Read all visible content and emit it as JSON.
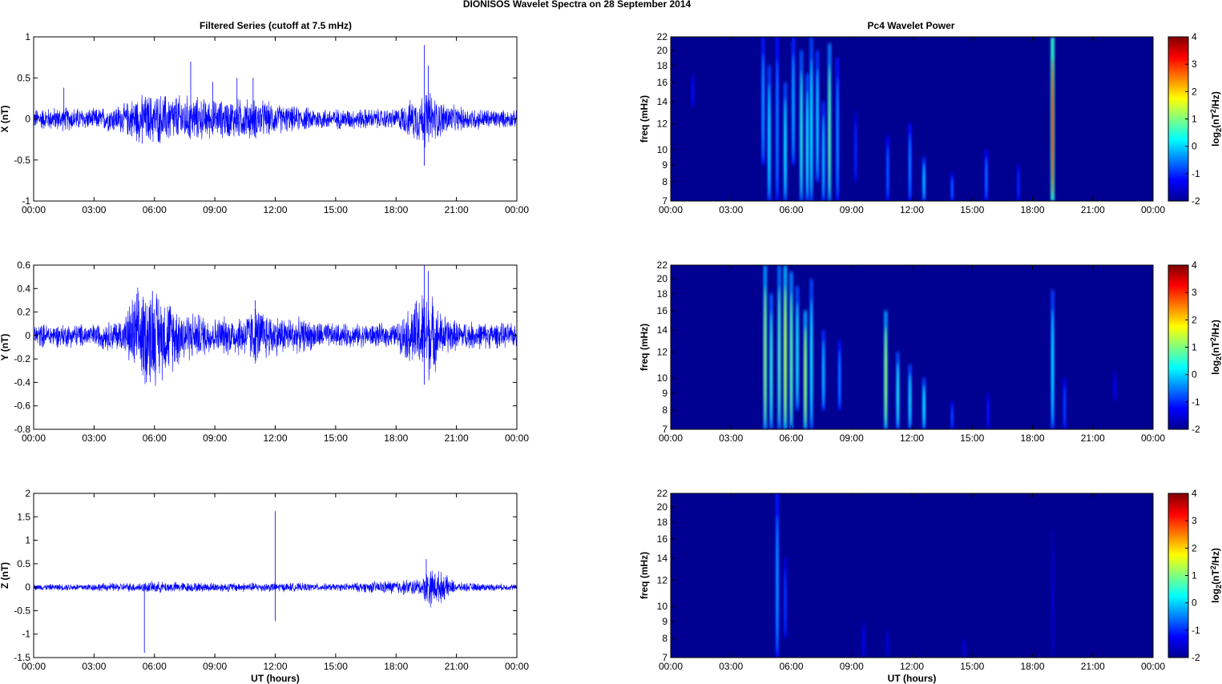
{
  "figure": {
    "title": "DIONISOS Wavelet Spectra on 28 September 2014",
    "colors": {
      "trace": "#0000ff",
      "background": "#ffffff",
      "axis": "#000000"
    }
  },
  "chart_data": [
    {
      "type": "line",
      "title": "Filtered Series (cutoff at 7.5 mHz)",
      "xlabel": "",
      "ylabel": "X (nT)",
      "ylim": [
        -1,
        1
      ],
      "yticks": [
        "-1",
        "-0.5",
        "0",
        "0.5",
        "1"
      ],
      "xlim_hours": [
        0,
        24
      ],
      "xticks": [
        "00:00",
        "03:00",
        "06:00",
        "09:00",
        "12:00",
        "15:00",
        "18:00",
        "21:00",
        "00:00"
      ],
      "envelope": [
        [
          0,
          0.1
        ],
        [
          1.5,
          0.12
        ],
        [
          3,
          0.1
        ],
        [
          4.5,
          0.15
        ],
        [
          5,
          0.22
        ],
        [
          6,
          0.25
        ],
        [
          7,
          0.24
        ],
        [
          8,
          0.22
        ],
        [
          9,
          0.18
        ],
        [
          10,
          0.2
        ],
        [
          11,
          0.2
        ],
        [
          12,
          0.15
        ],
        [
          13,
          0.12
        ],
        [
          15,
          0.1
        ],
        [
          18,
          0.1
        ],
        [
          19.3,
          0.25
        ],
        [
          19.6,
          0.3
        ],
        [
          20,
          0.2
        ],
        [
          21,
          0.12
        ],
        [
          24,
          0.08
        ]
      ],
      "spikes": [
        [
          7.8,
          0.7
        ],
        [
          19.4,
          0.9
        ],
        [
          19.4,
          -0.57
        ],
        [
          10.9,
          0.5
        ],
        [
          8.9,
          0.45
        ],
        [
          10.1,
          0.5
        ],
        [
          1.5,
          0.38
        ],
        [
          5.4,
          -0.3
        ],
        [
          19.6,
          0.65
        ]
      ]
    },
    {
      "type": "line",
      "title": "",
      "xlabel": "",
      "ylabel": "Y (nT)",
      "ylim": [
        -0.8,
        0.6
      ],
      "yticks": [
        "-0.8",
        "-0.6",
        "-0.4",
        "-0.2",
        "0",
        "0.2",
        "0.4",
        "0.6"
      ],
      "xlim_hours": [
        0,
        24
      ],
      "xticks": [
        "00:00",
        "03:00",
        "06:00",
        "09:00",
        "12:00",
        "15:00",
        "18:00",
        "21:00",
        "00:00"
      ],
      "envelope": [
        [
          0,
          0.08
        ],
        [
          3,
          0.08
        ],
        [
          4.5,
          0.12
        ],
        [
          5,
          0.3
        ],
        [
          5.8,
          0.35
        ],
        [
          6.5,
          0.28
        ],
        [
          7.5,
          0.18
        ],
        [
          9,
          0.12
        ],
        [
          10.5,
          0.15
        ],
        [
          11,
          0.2
        ],
        [
          12,
          0.14
        ],
        [
          15,
          0.08
        ],
        [
          18,
          0.08
        ],
        [
          19.3,
          0.3
        ],
        [
          19.6,
          0.32
        ],
        [
          20.2,
          0.16
        ],
        [
          21,
          0.1
        ],
        [
          24,
          0.08
        ]
      ],
      "spikes": [
        [
          19.4,
          0.6
        ],
        [
          19.4,
          -0.42
        ],
        [
          19.6,
          0.55
        ],
        [
          5.6,
          -0.4
        ],
        [
          5.9,
          0.38
        ],
        [
          11,
          0.3
        ]
      ]
    },
    {
      "type": "line",
      "title": "",
      "xlabel": "UT (hours)",
      "ylabel": "Z (nT)",
      "ylim": [
        -1.5,
        2
      ],
      "yticks": [
        "-1.5",
        "-1",
        "-0.5",
        "0",
        "0.5",
        "1",
        "1.5",
        "2"
      ],
      "xlim_hours": [
        0,
        24
      ],
      "xticks": [
        "00:00",
        "03:00",
        "06:00",
        "09:00",
        "12:00",
        "15:00",
        "18:00",
        "21:00",
        "00:00"
      ],
      "envelope": [
        [
          0,
          0.05
        ],
        [
          2,
          0.06
        ],
        [
          5,
          0.08
        ],
        [
          6,
          0.1
        ],
        [
          8,
          0.08
        ],
        [
          12,
          0.08
        ],
        [
          15,
          0.06
        ],
        [
          19.3,
          0.15
        ],
        [
          19.6,
          0.35
        ],
        [
          20.3,
          0.25
        ],
        [
          21,
          0.08
        ],
        [
          24,
          0.05
        ]
      ],
      "spikes": [
        [
          5.5,
          -1.4
        ],
        [
          12.0,
          1.62
        ],
        [
          12.0,
          -0.72
        ],
        [
          19.5,
          0.6
        ],
        [
          19.5,
          -0.25
        ]
      ]
    },
    {
      "type": "heatmap",
      "title": "Pc4 Wavelet Power",
      "xlabel": "",
      "ylabel": "freq (mHz)",
      "yscale": "log",
      "ylim": [
        7,
        22
      ],
      "yticks": [
        7,
        8,
        9,
        10,
        12,
        14,
        16,
        18,
        20,
        22
      ],
      "xlim_hours": [
        0,
        24
      ],
      "xticks": [
        "00:00",
        "03:00",
        "06:00",
        "09:00",
        "12:00",
        "15:00",
        "18:00",
        "21:00",
        "00:00"
      ],
      "colorbar": {
        "label": "log2(nT²/Hz)",
        "label_main": "log",
        "label_sub": "2",
        "label_rest": "(nT",
        "label_sup": "2",
        "label_end": "/Hz)",
        "range": [
          -2,
          4
        ],
        "ticks": [
          "-2",
          "-1",
          "0",
          "1",
          "2",
          "3",
          "4"
        ]
      },
      "features": [
        {
          "t": 1.1,
          "fmin": 13.5,
          "fmax": 17,
          "p": -1.2
        },
        {
          "t": 4.6,
          "fmin": 9,
          "fmax": 22,
          "p": -0.2
        },
        {
          "t": 4.9,
          "fmin": 7,
          "fmax": 18,
          "p": 0.2
        },
        {
          "t": 5.3,
          "fmin": 7,
          "fmax": 22,
          "p": -0.4
        },
        {
          "t": 5.7,
          "fmin": 7,
          "fmax": 16,
          "p": 0.3
        },
        {
          "t": 6.1,
          "fmin": 9,
          "fmax": 22,
          "p": -0.1
        },
        {
          "t": 6.5,
          "fmin": 7,
          "fmax": 20,
          "p": 0.5
        },
        {
          "t": 6.8,
          "fmin": 7,
          "fmax": 17,
          "p": 0.4
        },
        {
          "t": 7.0,
          "fmin": 7,
          "fmax": 22,
          "p": 0.3
        },
        {
          "t": 7.3,
          "fmin": 8,
          "fmax": 20,
          "p": 0.1
        },
        {
          "t": 7.6,
          "fmin": 7,
          "fmax": 14,
          "p": 0
        },
        {
          "t": 7.9,
          "fmin": 7,
          "fmax": 21,
          "p": 0.9
        },
        {
          "t": 8.3,
          "fmin": 7,
          "fmax": 19,
          "p": -0.3
        },
        {
          "t": 9.2,
          "fmin": 8,
          "fmax": 13,
          "p": -1
        },
        {
          "t": 10.8,
          "fmin": 7,
          "fmax": 11,
          "p": -0.6
        },
        {
          "t": 11.9,
          "fmin": 7,
          "fmax": 12,
          "p": -0.4
        },
        {
          "t": 12.6,
          "fmin": 7,
          "fmax": 9.5,
          "p": 0
        },
        {
          "t": 14.0,
          "fmin": 7,
          "fmax": 8.5,
          "p": -0.6
        },
        {
          "t": 15.7,
          "fmin": 7,
          "fmax": 10,
          "p": -0.5
        },
        {
          "t": 17.3,
          "fmin": 7,
          "fmax": 9,
          "p": -1
        },
        {
          "t": 19.0,
          "fmin": 7,
          "fmax": 22,
          "p": 3.0
        }
      ]
    },
    {
      "type": "heatmap",
      "title": "",
      "xlabel": "",
      "ylabel": "freq (mHz)",
      "yscale": "log",
      "ylim": [
        7,
        22
      ],
      "yticks": [
        7,
        8,
        9,
        10,
        12,
        14,
        16,
        18,
        20,
        22
      ],
      "xlim_hours": [
        0,
        24
      ],
      "xticks": [
        "00:00",
        "03:00",
        "06:00",
        "09:00",
        "12:00",
        "15:00",
        "18:00",
        "21:00",
        "00:00"
      ],
      "colorbar": {
        "label": "log2(nT²/Hz)",
        "label_main": "log",
        "label_sub": "2",
        "label_rest": "(nT",
        "label_sup": "2",
        "label_end": "/Hz)",
        "range": [
          -2,
          4
        ],
        "ticks": [
          "-2",
          "-1",
          "0",
          "1",
          "2",
          "3",
          "4"
        ]
      },
      "features": [
        {
          "t": 4.7,
          "fmin": 7,
          "fmax": 22,
          "p": 1.2
        },
        {
          "t": 5.0,
          "fmin": 7,
          "fmax": 18,
          "p": 0.6
        },
        {
          "t": 5.4,
          "fmin": 7,
          "fmax": 22,
          "p": 0.8
        },
        {
          "t": 5.7,
          "fmin": 7,
          "fmax": 22,
          "p": 1.6
        },
        {
          "t": 6.0,
          "fmin": 7,
          "fmax": 21,
          "p": 1.0
        },
        {
          "t": 6.3,
          "fmin": 8,
          "fmax": 19,
          "p": 0.4
        },
        {
          "t": 6.7,
          "fmin": 7,
          "fmax": 16,
          "p": 1.4
        },
        {
          "t": 7.0,
          "fmin": 7,
          "fmax": 20,
          "p": 0.3
        },
        {
          "t": 7.6,
          "fmin": 8,
          "fmax": 14,
          "p": 0
        },
        {
          "t": 8.4,
          "fmin": 8,
          "fmax": 13,
          "p": -0.4
        },
        {
          "t": 10.7,
          "fmin": 7,
          "fmax": 16,
          "p": 1.3
        },
        {
          "t": 11.3,
          "fmin": 7,
          "fmax": 12,
          "p": 0.4
        },
        {
          "t": 11.9,
          "fmin": 7,
          "fmax": 11,
          "p": 0.2
        },
        {
          "t": 12.6,
          "fmin": 7,
          "fmax": 10,
          "p": 0.3
        },
        {
          "t": 14.0,
          "fmin": 7,
          "fmax": 8.5,
          "p": -0.8
        },
        {
          "t": 15.8,
          "fmin": 7,
          "fmax": 9,
          "p": -1.1
        },
        {
          "t": 19.0,
          "fmin": 7,
          "fmax": 18.5,
          "p": 0.2
        },
        {
          "t": 19.6,
          "fmin": 7,
          "fmax": 10,
          "p": -0.8
        },
        {
          "t": 22.1,
          "fmin": 8.5,
          "fmax": 10.5,
          "p": -1.3
        }
      ]
    },
    {
      "type": "heatmap",
      "title": "",
      "xlabel": "UT (hours)",
      "ylabel": "freq (mHz)",
      "yscale": "log",
      "ylim": [
        7,
        22
      ],
      "yticks": [
        7,
        8,
        9,
        10,
        12,
        14,
        16,
        18,
        20,
        22
      ],
      "xlim_hours": [
        0,
        24
      ],
      "xticks": [
        "00:00",
        "03:00",
        "06:00",
        "09:00",
        "12:00",
        "15:00",
        "18:00",
        "21:00",
        "00:00"
      ],
      "colorbar": {
        "label": "log2(nT²/Hz)",
        "label_main": "log",
        "label_sub": "2",
        "label_rest": "(nT",
        "label_sup": "2",
        "label_end": "/Hz)",
        "range": [
          -2,
          4
        ],
        "ticks": [
          "-2",
          "-1",
          "0",
          "1",
          "2",
          "3",
          "4"
        ]
      },
      "features": [
        {
          "t": 5.3,
          "fmin": 7,
          "fmax": 22,
          "p": -0.2
        },
        {
          "t": 5.7,
          "fmin": 8,
          "fmax": 14,
          "p": -0.9
        },
        {
          "t": 9.6,
          "fmin": 7,
          "fmax": 9,
          "p": -1.3
        },
        {
          "t": 10.8,
          "fmin": 7,
          "fmax": 8.5,
          "p": -1.4
        },
        {
          "t": 14.6,
          "fmin": 7,
          "fmax": 8,
          "p": -1.4
        },
        {
          "t": 19.0,
          "fmin": 7,
          "fmax": 17,
          "p": -1.5
        }
      ]
    }
  ]
}
